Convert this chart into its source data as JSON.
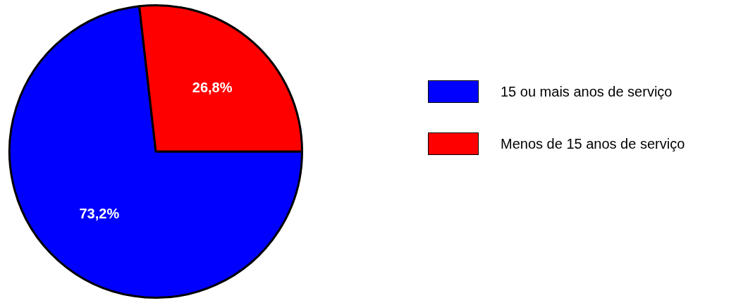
{
  "chart_data": {
    "type": "pie",
    "categories": [
      "15 ou mais anos de serviço",
      "Menos de 15 anos de serviço"
    ],
    "values": [
      73.2,
      26.8
    ],
    "colors": [
      "#0000ff",
      "#ff0000"
    ],
    "value_labels": [
      "73,2%",
      "26,8%"
    ],
    "legend": "right"
  }
}
